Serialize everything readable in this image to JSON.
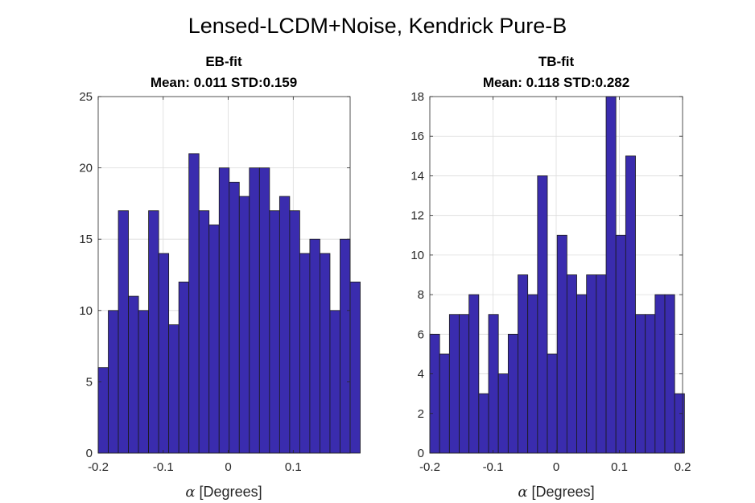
{
  "figure_title": "Lensed-LCDM+Noise, Kendrick Pure-B",
  "bar_color": "#3a2cae",
  "chart_data": [
    {
      "type": "bar",
      "title_line1": "EB-fit",
      "title_line2": "Mean: 0.011 STD:0.159",
      "xlabel_symbol": "α",
      "xlabel": " [Degrees]",
      "ylabel": "",
      "bin_start": -0.2,
      "bin_width": 0.0155,
      "values": [
        6,
        10,
        17,
        11,
        10,
        17,
        14,
        9,
        12,
        21,
        17,
        16,
        20,
        19,
        18,
        20,
        20,
        17,
        18,
        17,
        14,
        15,
        14,
        10,
        15,
        12
      ],
      "xlim": [
        -0.2,
        0.1875
      ],
      "ylim": [
        0,
        25
      ],
      "xticks": [
        -0.2,
        -0.1,
        0,
        0.1
      ],
      "xtick_labels": [
        "-0.2",
        "-0.1",
        "0",
        "0.1"
      ],
      "yticks": [
        0,
        5,
        10,
        15,
        20,
        25
      ],
      "ytick_labels": [
        "0",
        "5",
        "10",
        "15",
        "20",
        "25"
      ],
      "grid": true
    },
    {
      "type": "bar",
      "title_line1": "TB-fit",
      "title_line2": "Mean: 0.118 STD:0.282",
      "xlabel_symbol": "α",
      "xlabel": " [Degrees]",
      "ylabel": "",
      "bin_start": -0.2,
      "bin_width": 0.0155,
      "values": [
        6,
        5,
        7,
        7,
        8,
        3,
        7,
        4,
        6,
        9,
        8,
        14,
        5,
        11,
        9,
        8,
        9,
        9,
        18,
        11,
        15,
        7,
        7,
        8,
        8,
        3
      ],
      "xlim": [
        -0.2,
        0.2
      ],
      "ylim": [
        0,
        18
      ],
      "xticks": [
        -0.2,
        -0.1,
        0,
        0.1,
        0.2
      ],
      "xtick_labels": [
        "-0.2",
        "-0.1",
        "0",
        "0.1",
        "0.2"
      ],
      "yticks": [
        0,
        2,
        4,
        6,
        8,
        10,
        12,
        14,
        16,
        18
      ],
      "ytick_labels": [
        "0",
        "2",
        "4",
        "6",
        "8",
        "10",
        "12",
        "14",
        "16",
        "18"
      ],
      "grid": true
    }
  ]
}
